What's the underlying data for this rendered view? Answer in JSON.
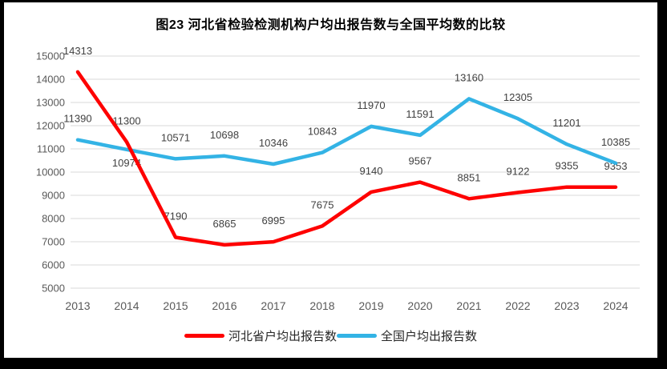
{
  "title": "图23  河北省检验检测机构户均出报告数与全国平均数的比较",
  "chart_data": {
    "type": "line",
    "title": "图23  河北省检验检测机构户均出报告数与全国平均数的比较",
    "categories": [
      "2013",
      "2014",
      "2015",
      "2016",
      "2017",
      "2018",
      "2019",
      "2020",
      "2021",
      "2022",
      "2023",
      "2024"
    ],
    "y_ticks": [
      15000,
      14000,
      13000,
      12000,
      11000,
      10000,
      9000,
      8000,
      7000,
      6000,
      5000
    ],
    "ylim": [
      5000,
      15000
    ],
    "grid": true,
    "legend_position": "bottom",
    "series": [
      {
        "name": "河北省户均出报告数",
        "color": "#FE0000",
        "values": [
          14313,
          11300,
          7190,
          6865,
          6995,
          7675,
          9140,
          9567,
          8851,
          9122,
          9355,
          9353
        ],
        "label_below_indices": []
      },
      {
        "name": "全国户均出报告数",
        "color": "#33B3E5",
        "values": [
          11390,
          10974,
          10571,
          10698,
          10346,
          10843,
          11970,
          11591,
          13160,
          12305,
          11201,
          10385
        ],
        "label_below_indices": [
          1
        ]
      }
    ]
  },
  "colors": {
    "grid": "#D9D9D9",
    "axis_text": "#595959",
    "data_label": "#404040",
    "frame": "#000000",
    "background": "#FFFFFF"
  }
}
